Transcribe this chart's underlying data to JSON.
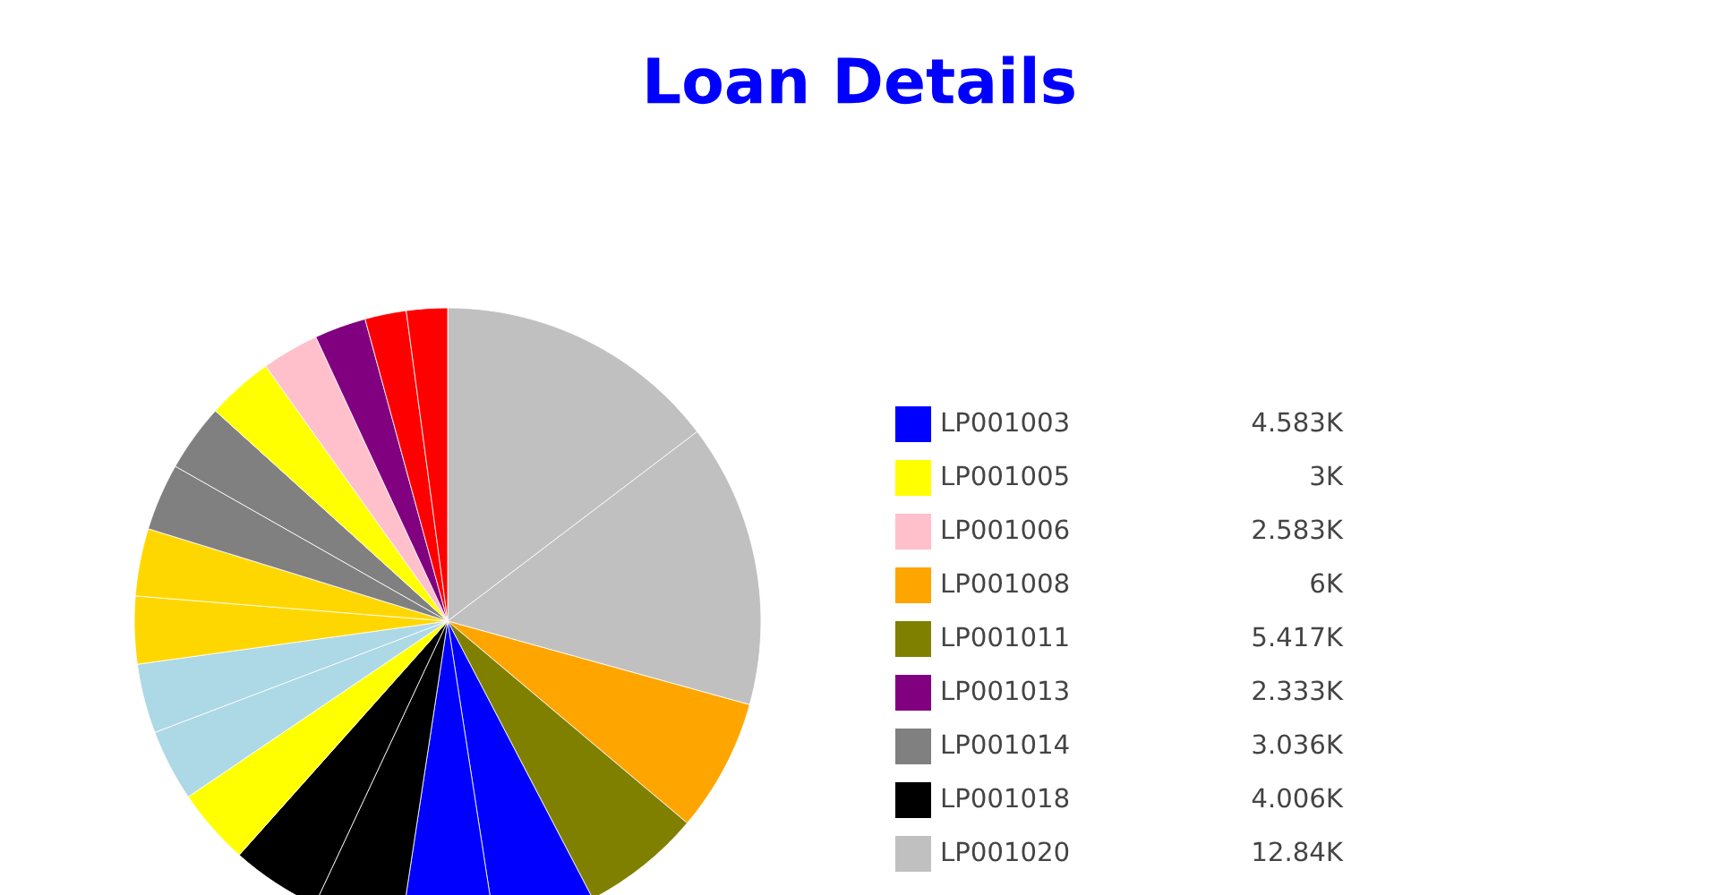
{
  "chart_data": {
    "type": "pie",
    "title": "Loan Details",
    "categories": [
      "LP001020",
      null,
      "LP001008",
      "LP001011",
      "LP001003",
      null,
      "LP001018",
      null,
      null,
      null,
      null,
      null,
      null,
      "LP001014",
      null,
      "LP001005",
      "LP001006",
      "LP001013",
      null,
      null
    ],
    "values": [
      12840,
      12820,
      6000,
      5417,
      4583,
      4232,
      4006,
      4037,
      3453,
      3234,
      3137,
      3050,
      3050,
      3036,
      3050,
      3000,
      2583,
      2333,
      1870,
      1850
    ],
    "value_labels": [
      "12.84K",
      null,
      "6K",
      "5.417K",
      "4.583K",
      null,
      "4.006K",
      null,
      null,
      null,
      null,
      null,
      null,
      "3.036K",
      null,
      "3K",
      "2.583K",
      "2.333K",
      null,
      null
    ],
    "colors": [
      "#c0c0c0",
      "#c0c0c0",
      "#ffa500",
      "#808000",
      "#0000ff",
      "#0000ff",
      "#000000",
      "#000000",
      "#ffff00",
      "#add8e6",
      "#add8e6",
      "#ffd700",
      "#ffd700",
      "#808080",
      "#808080",
      "#ffff00",
      "#ffc0cb",
      "#800080",
      "#ff0000",
      "#ff0000"
    ],
    "legend": "right"
  }
}
